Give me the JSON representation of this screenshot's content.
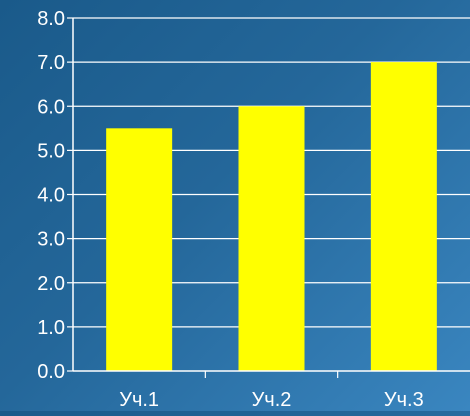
{
  "chart_data": {
    "type": "bar",
    "categories": [
      "Уч.1",
      "Уч.2",
      "Уч.3"
    ],
    "values": [
      5.5,
      6.0,
      7.0
    ],
    "ylim": [
      0,
      8
    ],
    "yticks": [
      "0.0",
      "1.0",
      "2.0",
      "3.0",
      "4.0",
      "5.0",
      "6.0",
      "7.0",
      "8.0"
    ],
    "grid": true,
    "colors": {
      "bar": "#ffff00",
      "text": "#ffffff",
      "grid": "#ffffff",
      "background_start": "#1a5a8a",
      "background_end": "#3a86c0"
    }
  }
}
